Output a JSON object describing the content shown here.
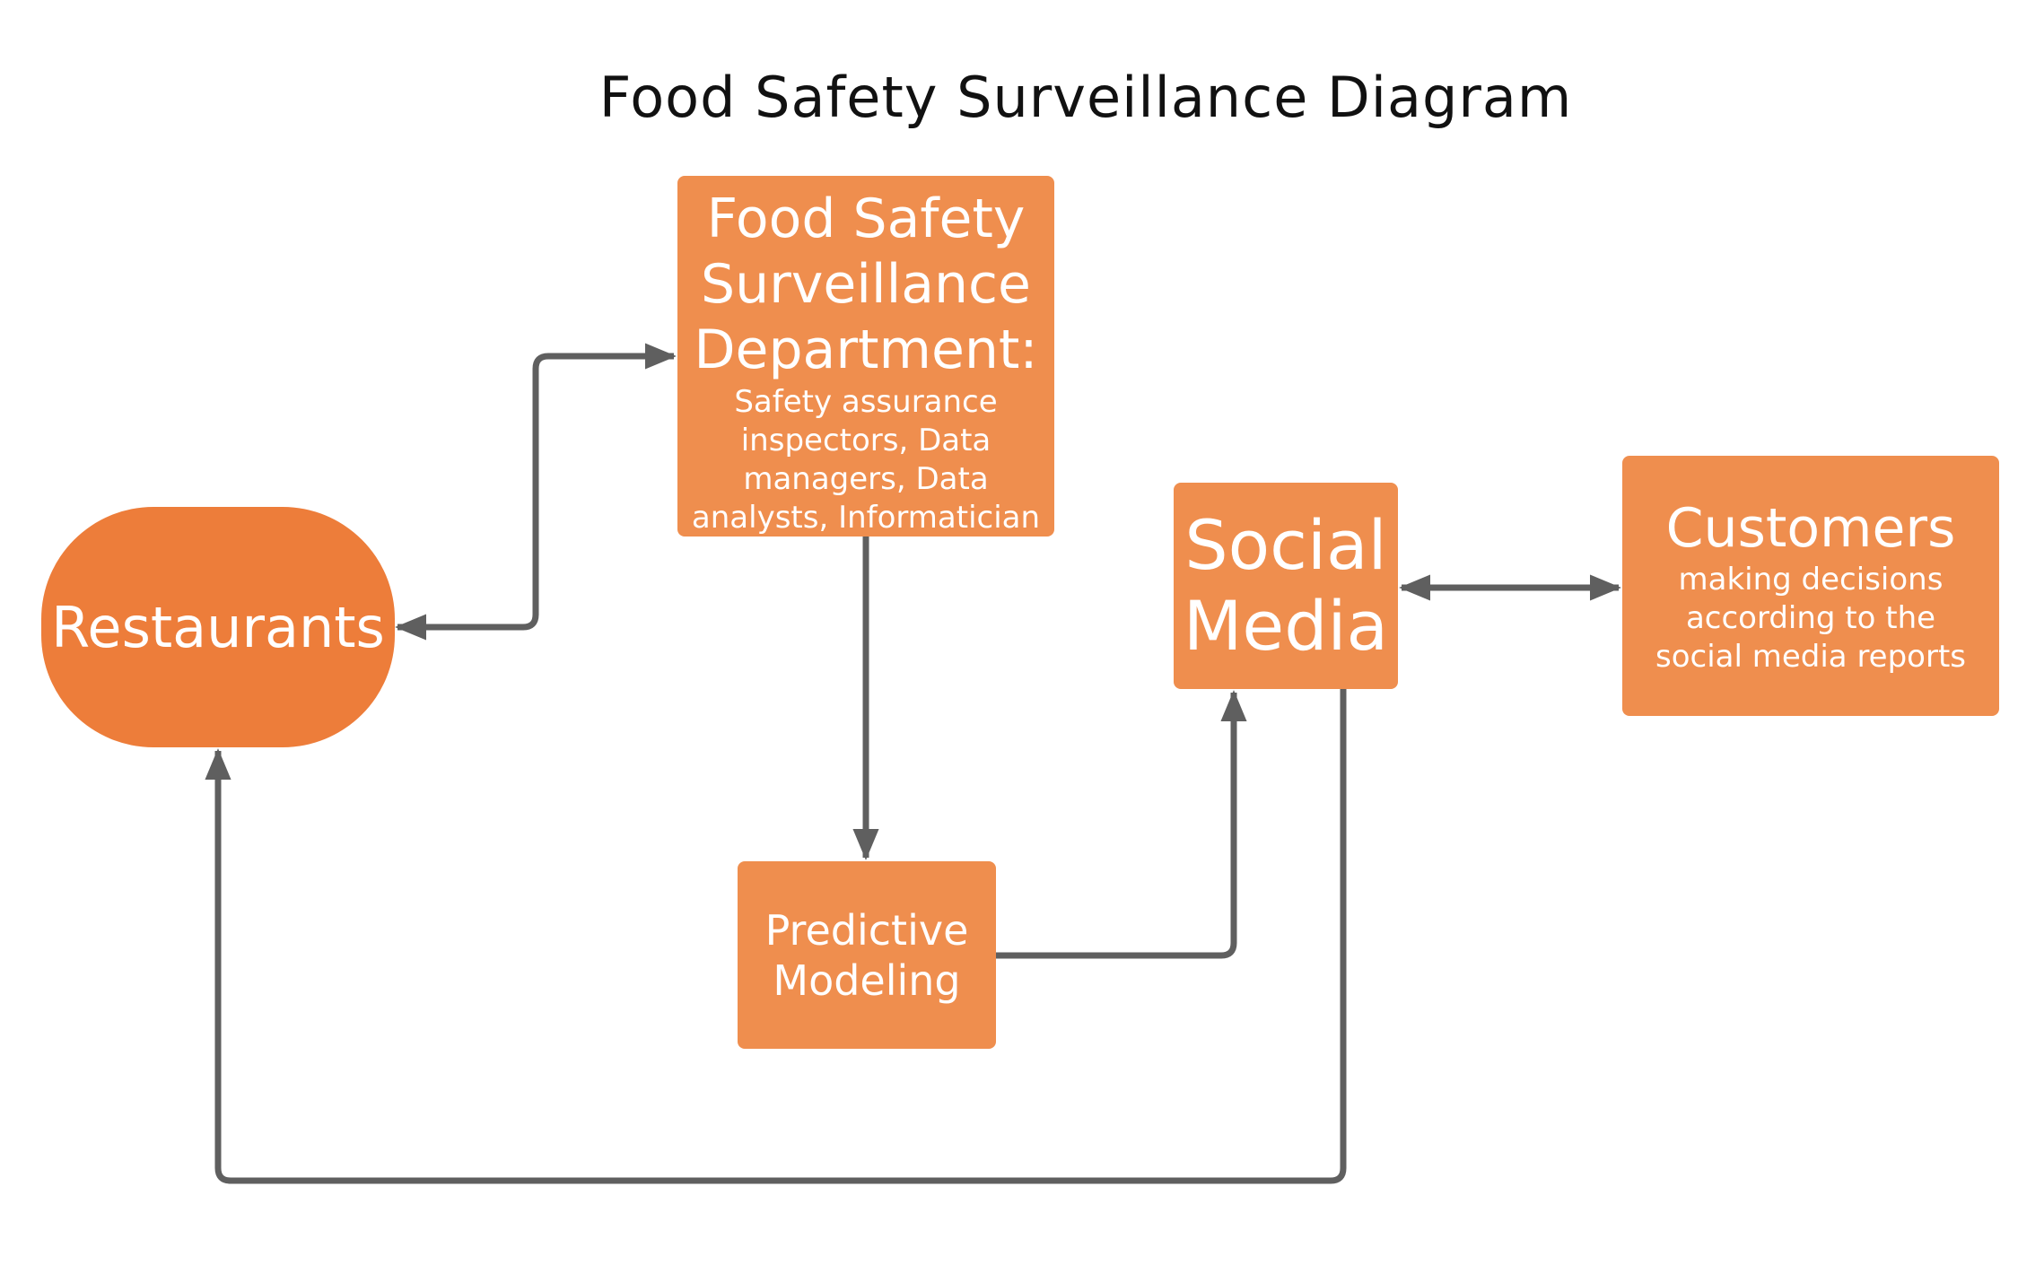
{
  "title": "Food Safety Surveillance Diagram",
  "colors": {
    "node_fill": "#ef8e4e",
    "terminal_fill": "#ed7d3a",
    "node_text": "#ffffff",
    "connector": "#5f5f5f",
    "title_text": "#111111"
  },
  "nodes": {
    "restaurants": {
      "label": "Restaurants",
      "shape": "rounded-terminal"
    },
    "department": {
      "label_lines": [
        "Food Safety",
        "Surveillance",
        "Department:"
      ],
      "detail_lines": [
        "Safety assurance",
        "inspectors, Data",
        "managers, Data",
        "analysts, Informatician"
      ]
    },
    "social_media": {
      "label_lines": [
        "Social",
        "Media"
      ]
    },
    "customers": {
      "label": "Customers",
      "detail_lines": [
        "making decisions",
        "according to the",
        "social media reports"
      ]
    },
    "predictive_modeling": {
      "label_lines": [
        "Predictive",
        "Modeling"
      ]
    }
  },
  "edges": [
    {
      "from": "department",
      "to": "restaurants",
      "direction": "both"
    },
    {
      "from": "department",
      "to": "predictive_modeling",
      "direction": "forward"
    },
    {
      "from": "predictive_modeling",
      "to": "social_media",
      "direction": "forward"
    },
    {
      "from": "social_media",
      "to": "customers",
      "direction": "both"
    },
    {
      "from": "social_media",
      "to": "restaurants",
      "direction": "forward"
    }
  ]
}
